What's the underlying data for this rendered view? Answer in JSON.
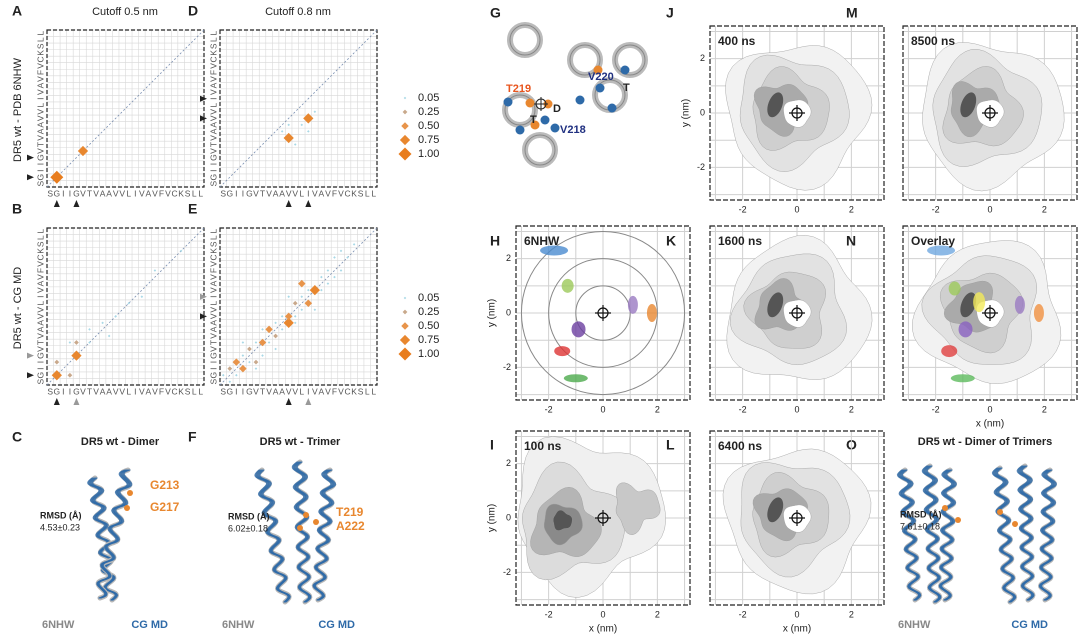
{
  "columns": [
    "Cutoff 0.5 nm",
    "Cutoff 0.8 nm"
  ],
  "sequence": [
    "S",
    "G",
    "I",
    "I",
    "G",
    "V",
    "T",
    "V",
    "A",
    "A",
    "V",
    "V",
    "L",
    "I",
    "V",
    "A",
    "V",
    "F",
    "V",
    "C",
    "K",
    "S",
    "L",
    "L"
  ],
  "rows": [
    {
      "label": "DR5 wt - PDB 6NHW",
      "legend": [
        {
          "value": 0.05,
          "label": "0.05",
          "color": "#a8d8e6"
        },
        {
          "value": 0.25,
          "label": "0.25",
          "color": "#c9a98c"
        },
        {
          "value": 0.5,
          "label": "0.50",
          "color": "#e8944a"
        },
        {
          "value": 0.75,
          "label": "0.75",
          "color": "#e8872f"
        },
        {
          "value": 1.0,
          "label": "1.00",
          "color": "#e87d1e"
        }
      ]
    },
    {
      "label": "DR5 wt - CG MD",
      "legend": [
        {
          "value": 0.05,
          "label": "0.05",
          "color": "#a8d8e6"
        },
        {
          "value": 0.25,
          "label": "0.25",
          "color": "#c9a98c"
        },
        {
          "value": 0.5,
          "label": "0.50",
          "color": "#e8944a"
        },
        {
          "value": 0.75,
          "label": "0.75",
          "color": "#e8872f"
        },
        {
          "value": 1.0,
          "label": "1.00",
          "color": "#e87d1e"
        }
      ]
    }
  ],
  "contact_maps": [
    {
      "letter": "A",
      "contacts": [
        {
          "i": 1,
          "j": 1,
          "value": 1.0
        },
        {
          "i": 5,
          "j": 5,
          "value": 0.75
        }
      ]
    },
    {
      "letter": "D",
      "contacts": [
        {
          "i": 10,
          "j": 7,
          "value": 0.75
        },
        {
          "i": 13,
          "j": 10,
          "value": 0.75
        },
        {
          "i": 11,
          "j": 6,
          "value": 0.05
        },
        {
          "i": 9,
          "j": 8,
          "value": 0.05
        },
        {
          "i": 12,
          "j": 9,
          "value": 0.05
        },
        {
          "i": 14,
          "j": 11,
          "value": 0.05
        },
        {
          "i": 10,
          "j": 9,
          "value": 0.05
        },
        {
          "i": 13,
          "j": 8,
          "value": 0.05
        }
      ]
    },
    {
      "letter": "B",
      "contacts": [
        {
          "i": 1,
          "j": 1,
          "value": 0.75
        },
        {
          "i": 4,
          "j": 4,
          "value": 0.75
        },
        {
          "i": 1,
          "j": 3,
          "value": 0.25
        },
        {
          "i": 3,
          "j": 1,
          "value": 0.25
        },
        {
          "i": 4,
          "j": 6,
          "value": 0.25
        },
        {
          "i": 6,
          "j": 6,
          "value": 0.05
        },
        {
          "i": 8,
          "j": 9,
          "value": 0.05
        },
        {
          "i": 10,
          "j": 10,
          "value": 0.05
        },
        {
          "i": 12,
          "j": 12,
          "value": 0.05
        },
        {
          "i": 14,
          "j": 13,
          "value": 0.05
        },
        {
          "i": 16,
          "j": 17,
          "value": 0.05
        },
        {
          "i": 20,
          "j": 20,
          "value": 0.05
        },
        {
          "i": 6,
          "j": 8,
          "value": 0.05
        },
        {
          "i": 9,
          "j": 7,
          "value": 0.05
        },
        {
          "i": 3,
          "j": 6,
          "value": 0.05
        }
      ]
    },
    {
      "letter": "E",
      "contacts": [
        {
          "i": 10,
          "j": 9,
          "value": 0.75
        },
        {
          "i": 10,
          "j": 10,
          "value": 0.5
        },
        {
          "i": 13,
          "j": 12,
          "value": 0.5
        },
        {
          "i": 14,
          "j": 14,
          "value": 0.75
        },
        {
          "i": 12,
          "j": 15,
          "value": 0.5
        },
        {
          "i": 2,
          "j": 3,
          "value": 0.5
        },
        {
          "i": 6,
          "j": 6,
          "value": 0.5
        },
        {
          "i": 7,
          "j": 8,
          "value": 0.5
        },
        {
          "i": 3,
          "j": 2,
          "value": 0.5
        },
        {
          "i": 1,
          "j": 2,
          "value": 0.25
        },
        {
          "i": 4,
          "j": 5,
          "value": 0.25
        },
        {
          "i": 5,
          "j": 3,
          "value": 0.25
        },
        {
          "i": 8,
          "j": 7,
          "value": 0.25
        },
        {
          "i": 11,
          "j": 12,
          "value": 0.25
        },
        {
          "i": 0,
          "j": 1,
          "value": 0.05
        },
        {
          "i": 1,
          "j": 0,
          "value": 0.05
        },
        {
          "i": 2,
          "j": 1,
          "value": 0.05
        },
        {
          "i": 3,
          "j": 4,
          "value": 0.05
        },
        {
          "i": 4,
          "j": 3,
          "value": 0.05
        },
        {
          "i": 5,
          "j": 6,
          "value": 0.05
        },
        {
          "i": 6,
          "j": 4,
          "value": 0.05
        },
        {
          "i": 7,
          "j": 6,
          "value": 0.05
        },
        {
          "i": 8,
          "j": 9,
          "value": 0.05
        },
        {
          "i": 9,
          "j": 8,
          "value": 0.05
        },
        {
          "i": 9,
          "j": 10,
          "value": 0.05
        },
        {
          "i": 11,
          "j": 10,
          "value": 0.05
        },
        {
          "i": 11,
          "j": 9,
          "value": 0.05
        },
        {
          "i": 12,
          "j": 11,
          "value": 0.05
        },
        {
          "i": 12,
          "j": 13,
          "value": 0.05
        },
        {
          "i": 13,
          "j": 14,
          "value": 0.05
        },
        {
          "i": 15,
          "j": 14,
          "value": 0.05
        },
        {
          "i": 15,
          "j": 16,
          "value": 0.05
        },
        {
          "i": 16,
          "j": 15,
          "value": 0.05
        },
        {
          "i": 16,
          "j": 17,
          "value": 0.05
        },
        {
          "i": 17,
          "j": 16,
          "value": 0.05
        },
        {
          "i": 18,
          "j": 17,
          "value": 0.05
        },
        {
          "i": 19,
          "j": 19,
          "value": 0.05
        },
        {
          "i": 20,
          "j": 21,
          "value": 0.05
        },
        {
          "i": 17,
          "j": 19,
          "value": 0.05
        },
        {
          "i": 6,
          "j": 8,
          "value": 0.05
        },
        {
          "i": 8,
          "j": 5,
          "value": 0.05
        },
        {
          "i": 14,
          "j": 11,
          "value": 0.05
        },
        {
          "i": 10,
          "j": 13,
          "value": 0.05
        },
        {
          "i": 3,
          "j": 6,
          "value": 0.05
        },
        {
          "i": 5,
          "j": 2,
          "value": 0.05
        },
        {
          "i": 18,
          "j": 20,
          "value": 0.05
        }
      ]
    }
  ],
  "structures": [
    {
      "letter": "C",
      "title": "DR5 wt - Dimer",
      "residues": [
        "G213",
        "G217"
      ],
      "rmsd_label": "RMSD (Å)",
      "rmsd": "4.53±0.23",
      "reference": "6NHW",
      "model": "CG MD"
    },
    {
      "letter": "F",
      "title": "DR5 wt - Trimer",
      "residues": [
        "T219",
        "A222"
      ],
      "rmsd_label": "RMSD (Å)",
      "rmsd": "6.02±0.18",
      "reference": "6NHW",
      "model": "CG MD"
    },
    {
      "letter": "O",
      "title": "DR5 wt - Dimer of Trimers",
      "residues": [],
      "rmsd_label": "RMSD (Å)",
      "rmsd": "7.61±0.18",
      "reference": "6NHW",
      "model": "CG MD"
    }
  ],
  "top_view": {
    "letter": "G",
    "labels": [
      "T219",
      "V220",
      "D",
      "T",
      "T",
      "V218"
    ]
  },
  "density_axes": {
    "xlabel": "x (nm)",
    "ylabel": "y (nm)",
    "xlim": [
      -3.2,
      3.2
    ],
    "ylim": [
      -3.2,
      3.2
    ],
    "xticks": [
      -2,
      0,
      2
    ],
    "yticks": [
      -2,
      0,
      2
    ],
    "gridlines": [
      -3,
      -2,
      -1,
      0,
      1,
      2,
      3
    ]
  },
  "density_panels": [
    {
      "letter": "J",
      "time": "400 ns"
    },
    {
      "letter": "M",
      "time": "8500 ns"
    },
    {
      "letter": "H",
      "time": "6NHW"
    },
    {
      "letter": "K",
      "time": "1600 ns"
    },
    {
      "letter": "N",
      "time": "Overlay"
    },
    {
      "letter": "I",
      "time": "100 ns"
    },
    {
      "letter": "L",
      "time": "6400 ns"
    }
  ]
}
